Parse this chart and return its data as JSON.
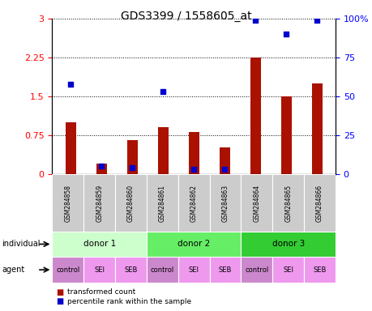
{
  "title": "GDS3399 / 1558605_at",
  "samples": [
    "GSM284858",
    "GSM284859",
    "GSM284860",
    "GSM284861",
    "GSM284862",
    "GSM284863",
    "GSM284864",
    "GSM284865",
    "GSM284866"
  ],
  "red_values": [
    1.0,
    0.2,
    0.65,
    0.9,
    0.82,
    0.52,
    2.25,
    1.5,
    1.75
  ],
  "blue_values_pct": [
    58,
    5,
    4,
    53,
    3,
    3,
    99,
    90,
    99
  ],
  "ylim_left": [
    0,
    3
  ],
  "ylim_right": [
    0,
    100
  ],
  "yticks_left": [
    0,
    0.75,
    1.5,
    2.25,
    3.0
  ],
  "ytick_left_labels": [
    "0",
    "0.75",
    "1.5",
    "2.25",
    "3"
  ],
  "yticks_right": [
    0,
    25,
    50,
    75,
    100
  ],
  "ytick_right_labels": [
    "0",
    "25",
    "50",
    "75",
    "100%"
  ],
  "donors": [
    {
      "label": "donor 1",
      "cols": [
        0,
        1,
        2
      ],
      "color": "#ccffcc"
    },
    {
      "label": "donor 2",
      "cols": [
        3,
        4,
        5
      ],
      "color": "#66ee66"
    },
    {
      "label": "donor 3",
      "cols": [
        6,
        7,
        8
      ],
      "color": "#33cc33"
    }
  ],
  "agents": [
    "control",
    "SEI",
    "SEB",
    "control",
    "SEI",
    "SEB",
    "control",
    "SEI",
    "SEB"
  ],
  "agent_colors": [
    "#cc88cc",
    "#ee99ee",
    "#ee99ee",
    "#cc88cc",
    "#ee99ee",
    "#ee99ee",
    "#cc88cc",
    "#ee99ee",
    "#ee99ee"
  ],
  "bar_color": "#aa1100",
  "dot_color": "#0000cc",
  "bar_width": 0.35,
  "bg_label_row": "#cccccc",
  "legend_red": "transformed count",
  "legend_blue": "percentile rank within the sample",
  "individual_label": "individual",
  "agent_label": "agent"
}
